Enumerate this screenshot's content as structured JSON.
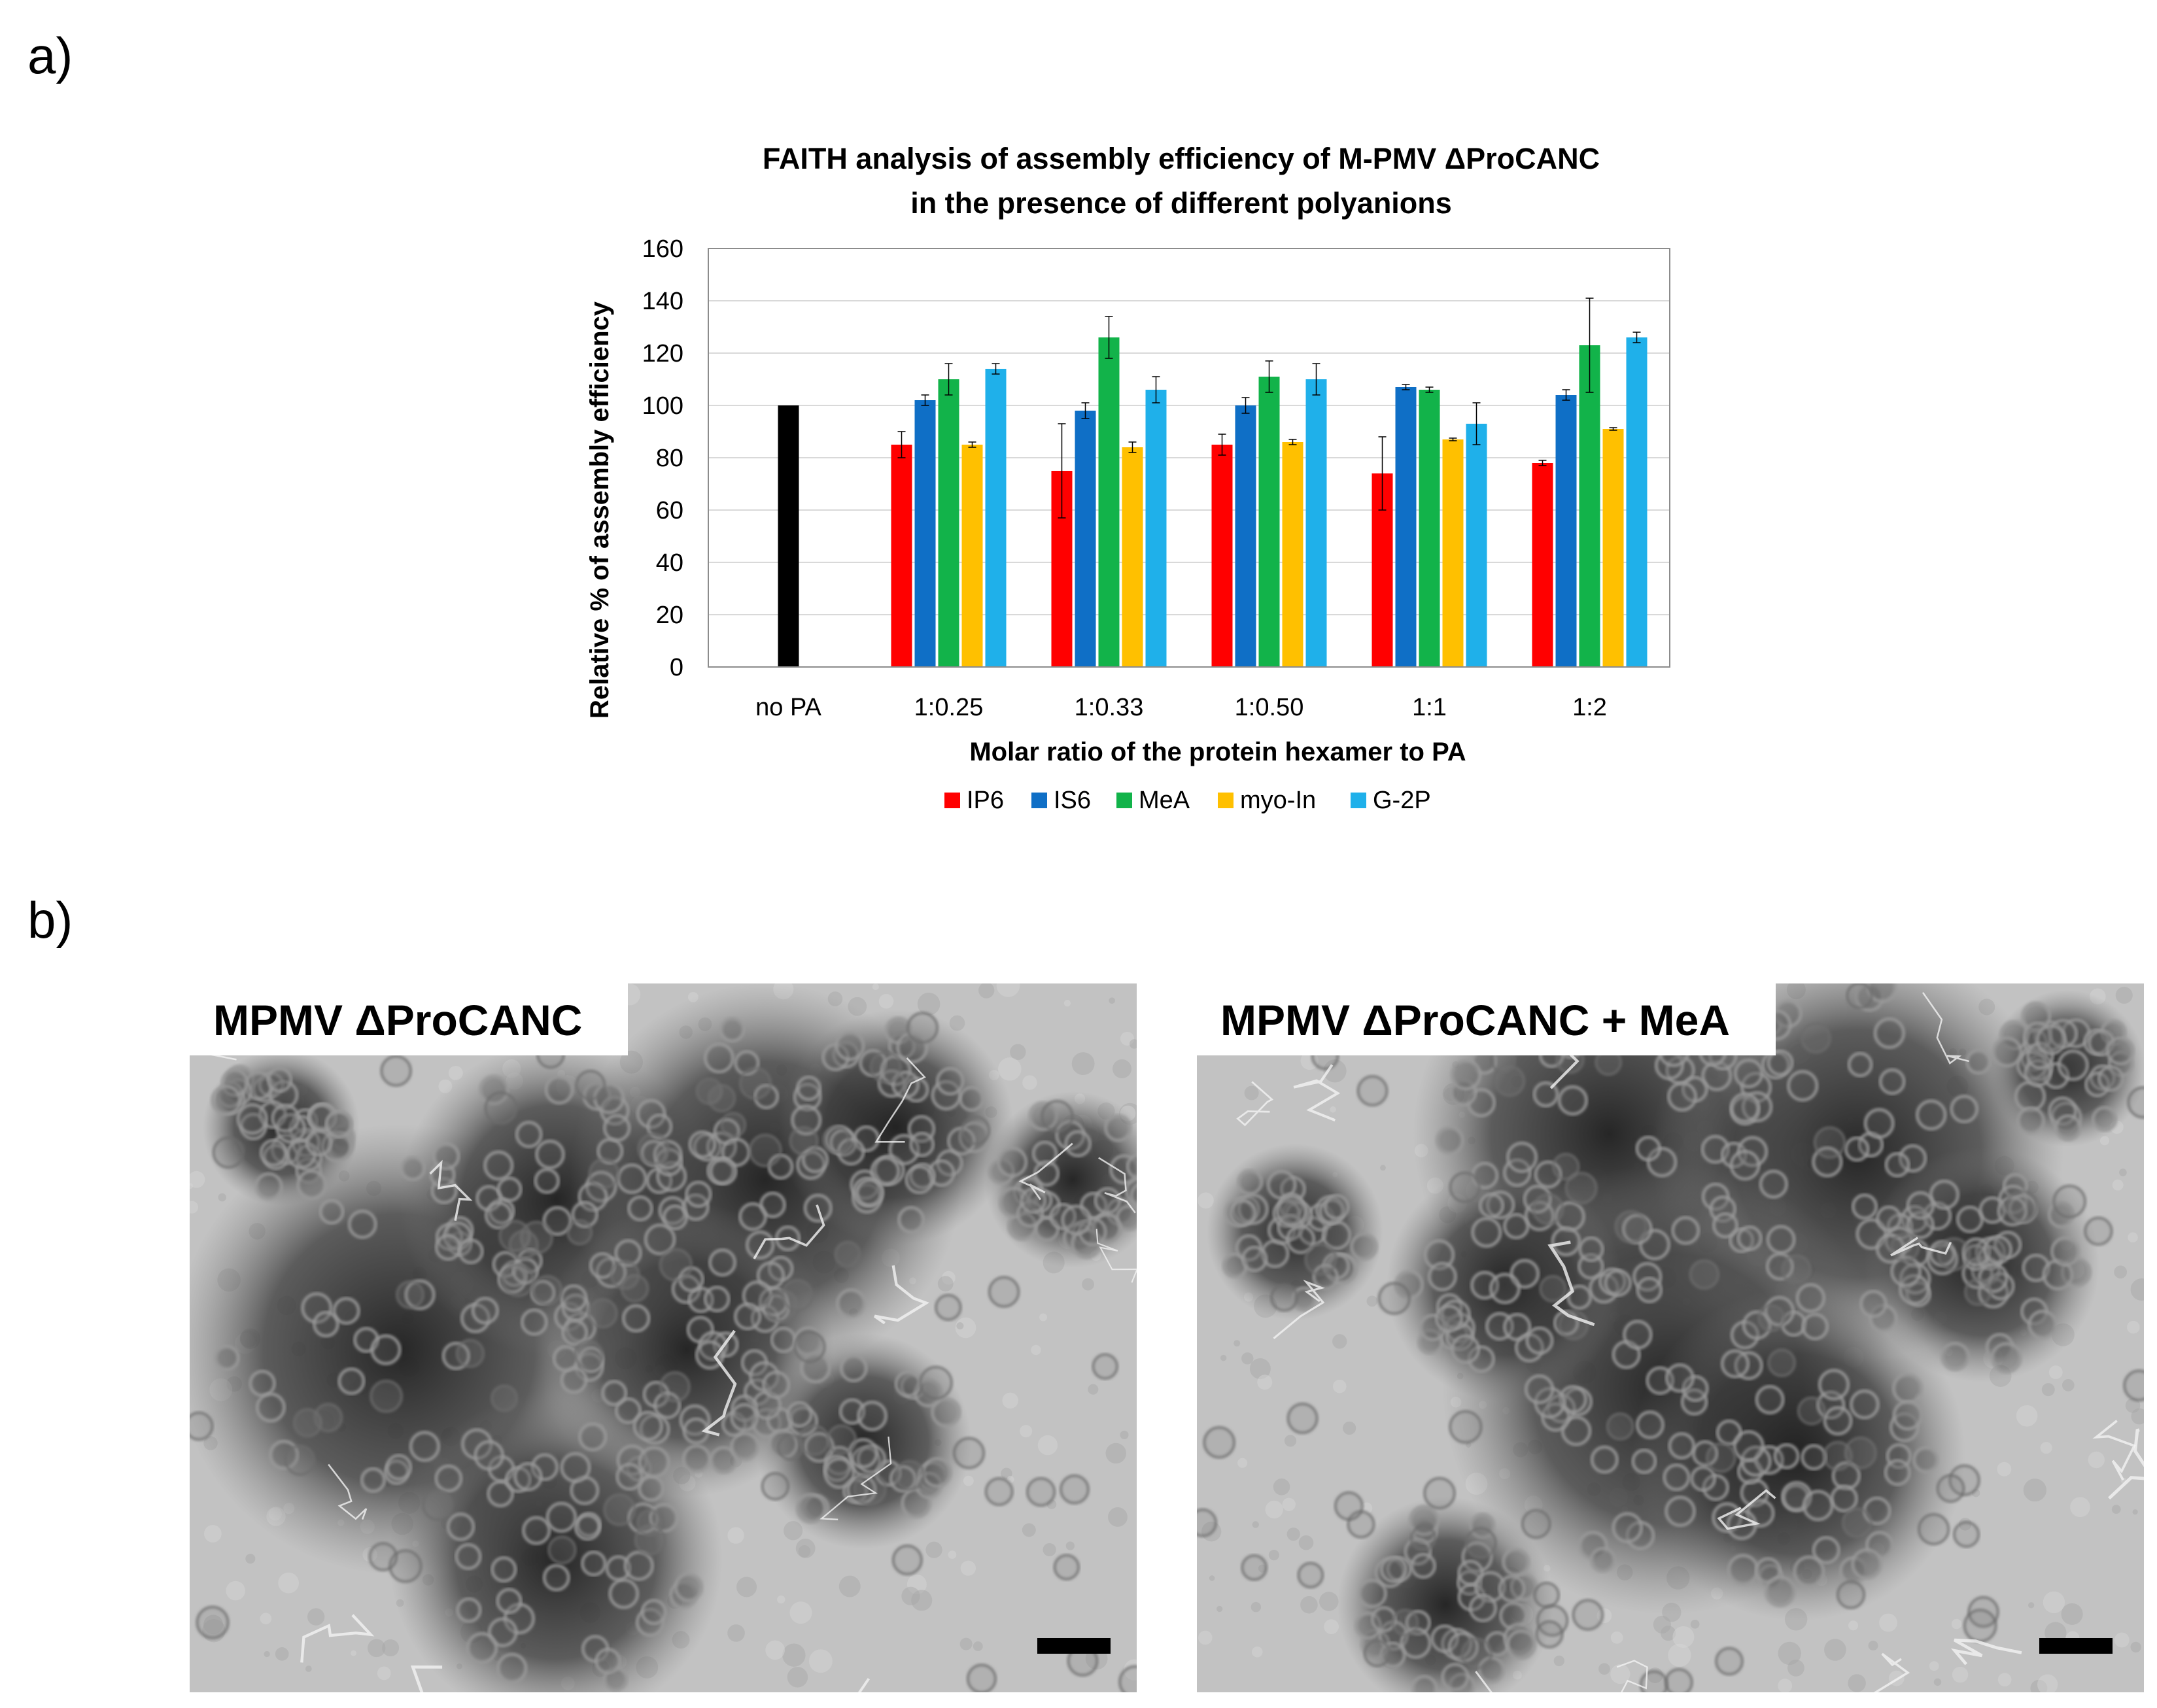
{
  "panel_a_label": "a)",
  "panel_b_label": "b)",
  "chart_data": {
    "type": "bar",
    "title_line1": "FAITH analysis of assembly efficiency of M-PMV ΔProCANC",
    "title_line2": "in the presence of different polyanions",
    "xlabel": "Molar ratio of the protein hexamer to PA",
    "ylabel": "Relative % of assembly efficiency",
    "ylim": [
      0,
      160
    ],
    "yticks": [
      0,
      20,
      40,
      60,
      80,
      100,
      120,
      140,
      160
    ],
    "grid": true,
    "legend_position": "bottom",
    "categories": [
      "no PA",
      "1:0.25",
      "1:0.33",
      "1:0.50",
      "1:1",
      "1:2"
    ],
    "control": {
      "category": "no PA",
      "value": 100,
      "color": "#000000"
    },
    "series": [
      {
        "name": "IP6",
        "color": "#ff0000",
        "values": [
          null,
          85,
          75,
          85,
          74,
          78
        ],
        "errors": [
          null,
          5,
          18,
          4,
          14,
          1
        ]
      },
      {
        "name": "IS6",
        "color": "#0f6fc6",
        "values": [
          null,
          102,
          98,
          100,
          107,
          104
        ],
        "errors": [
          null,
          2,
          3,
          3,
          1,
          2
        ]
      },
      {
        "name": "MeA",
        "color": "#12b34a",
        "values": [
          null,
          110,
          126,
          111,
          106,
          123
        ],
        "errors": [
          null,
          6,
          8,
          6,
          1,
          18
        ]
      },
      {
        "name": "myo-In",
        "color": "#ffc000",
        "values": [
          null,
          85,
          84,
          86,
          87,
          91
        ],
        "errors": [
          null,
          1,
          2,
          1,
          0.5,
          0.5
        ]
      },
      {
        "name": "G-2P",
        "color": "#1fb0ea",
        "values": [
          null,
          114,
          106,
          110,
          93,
          126
        ],
        "errors": [
          null,
          2,
          5,
          6,
          8,
          2
        ]
      }
    ]
  },
  "micrographs": [
    {
      "title": "MPMV ΔProCANC"
    },
    {
      "title": "MPMV ΔProCANC + MeA"
    }
  ]
}
